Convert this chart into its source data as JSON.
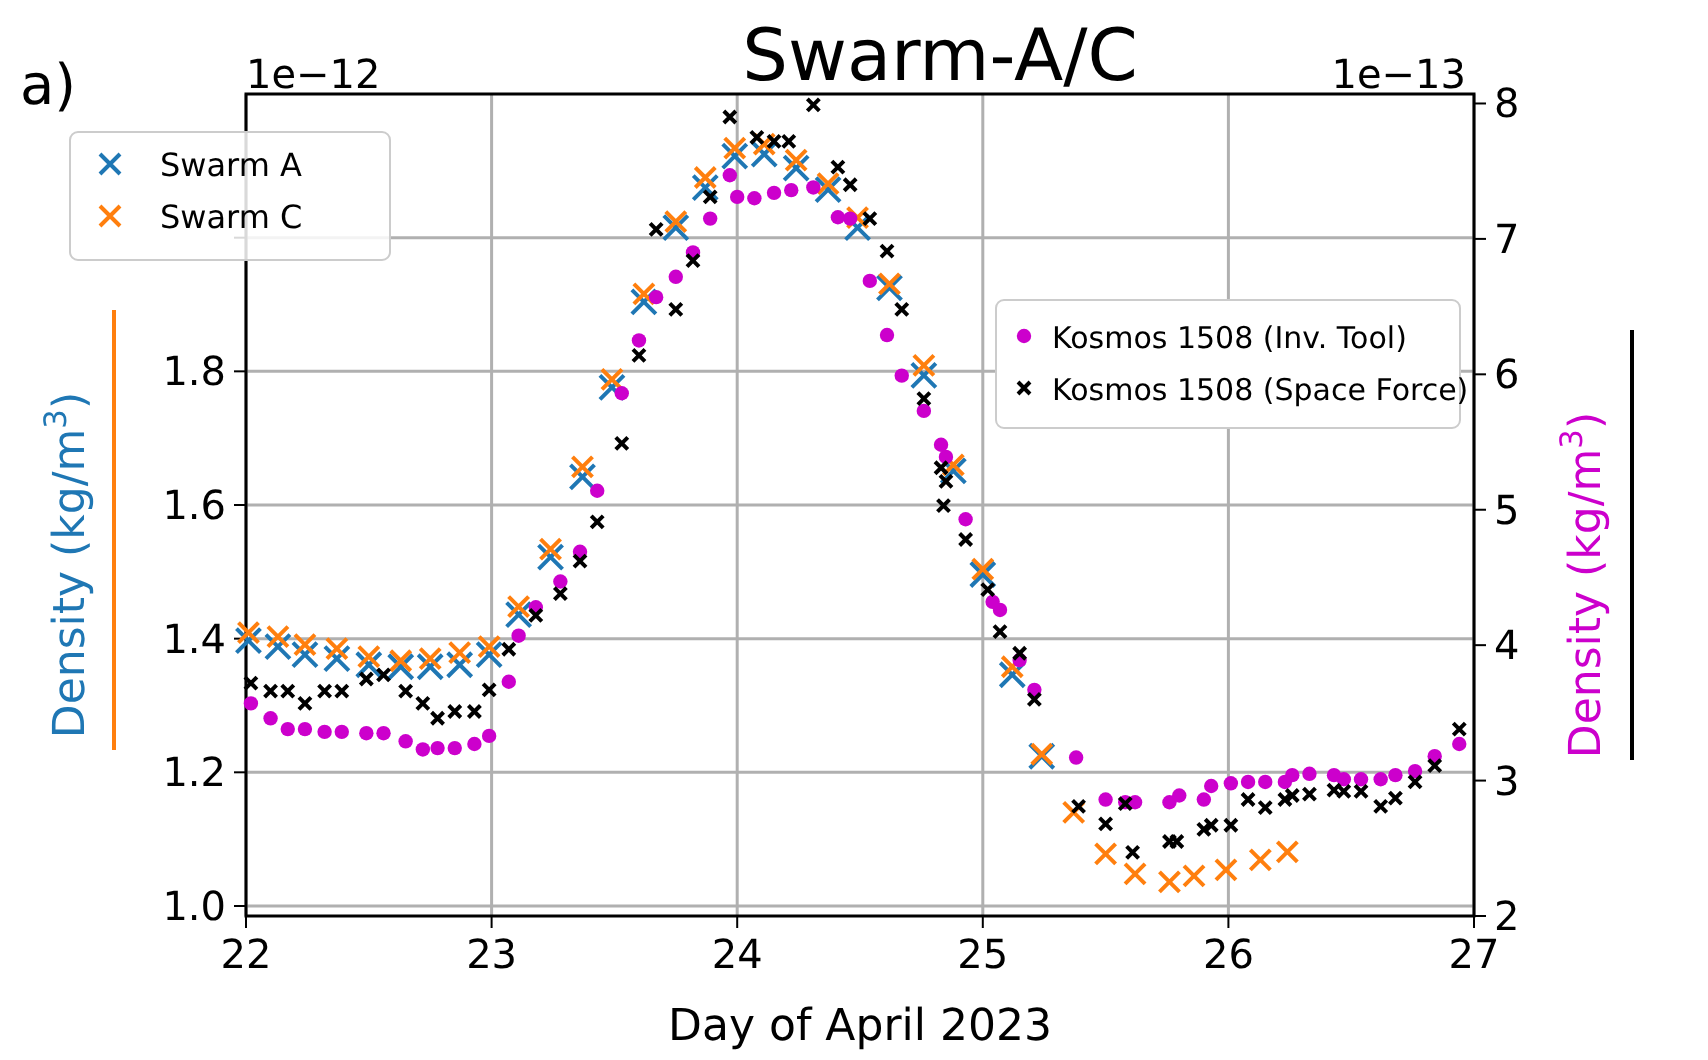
{
  "chart_data": {
    "type": "scatter",
    "title": "Swarm-A/C",
    "xlabel": "Day of April 2023",
    "ylabel": "Density (kg/m$^{3}$)",
    "y2label": "Density (kg/m$^{3}$)",
    "annotations": [
      "a)",
      "1e−12",
      "1e−13"
    ],
    "xlim": [
      22,
      27
    ],
    "xticks": [
      22,
      23,
      24,
      25,
      26,
      27
    ],
    "ylim": [
      0.985,
      2.215
    ],
    "yticks": [
      {
        "value": 1.0,
        "label": "1.0"
      },
      1.2,
      1.4,
      1.6,
      1.8,
      {
        "value": 2.0,
        "label": null
      }
    ],
    "y2lim": [
      2.0,
      8.07
    ],
    "y2ticks": [
      2,
      3,
      4,
      5,
      6,
      7,
      8
    ],
    "grid": true,
    "legend": "top",
    "series": [
      {
        "name": "Swarm A",
        "color": "#1f77b4",
        "marker": "cross",
        "axis": "y",
        "x": [
          22.01,
          22.13,
          22.24,
          22.37,
          22.5,
          22.63,
          22.75,
          22.87,
          22.99,
          23.11,
          23.24,
          23.37,
          23.49,
          23.62,
          23.75,
          23.87,
          23.99,
          24.11,
          24.24,
          24.37,
          24.49,
          24.62,
          24.76,
          24.88,
          25.0,
          25.12,
          25.24
        ],
        "values": [
          1.397,
          1.388,
          1.376,
          1.37,
          1.361,
          1.358,
          1.358,
          1.361,
          1.376,
          1.436,
          1.522,
          1.642,
          1.776,
          1.904,
          2.015,
          2.075,
          2.122,
          2.125,
          2.104,
          2.072,
          2.015,
          1.925,
          1.794,
          1.651,
          1.496,
          1.346,
          1.224
        ]
      },
      {
        "name": "Swarm C",
        "color": "#ff7f0e",
        "marker": "cross",
        "axis": "y",
        "x": [
          22.01,
          22.13,
          22.24,
          22.37,
          22.5,
          22.63,
          22.75,
          22.87,
          22.99,
          23.11,
          23.24,
          23.37,
          23.49,
          23.62,
          23.75,
          23.87,
          23.99,
          24.11,
          24.24,
          24.37,
          24.49,
          24.62,
          24.76,
          24.88,
          25.0,
          25.12,
          25.24,
          25.37,
          25.5,
          25.62,
          25.76,
          25.86,
          25.99,
          26.13,
          26.24
        ],
        "values": [
          1.409,
          1.403,
          1.391,
          1.385,
          1.373,
          1.367,
          1.37,
          1.379,
          1.388,
          1.448,
          1.534,
          1.657,
          1.788,
          1.916,
          2.024,
          2.09,
          2.134,
          2.14,
          2.116,
          2.081,
          2.03,
          1.931,
          1.809,
          1.66,
          1.504,
          1.358,
          1.227,
          1.14,
          1.078,
          1.048,
          1.036,
          1.045,
          1.054,
          1.069,
          1.081
        ]
      },
      {
        "name": "Kosmos 1508 (Inv. Tool)",
        "color": "#cc00cc",
        "marker": "circle",
        "axis": "y2",
        "x": [
          22.02,
          22.1,
          22.17,
          22.24,
          22.32,
          22.39,
          22.49,
          22.56,
          22.65,
          22.72,
          22.78,
          22.85,
          22.93,
          22.99,
          23.07,
          23.11,
          23.18,
          23.28,
          23.36,
          23.43,
          23.53,
          23.6,
          23.67,
          23.75,
          23.82,
          23.89,
          23.97,
          24.0,
          24.07,
          24.15,
          24.22,
          24.31,
          24.41,
          24.46,
          24.54,
          24.61,
          24.67,
          24.76,
          24.83,
          24.85,
          24.93,
          25.04,
          25.07,
          25.15,
          25.21,
          25.38,
          25.5,
          25.58,
          25.62,
          25.76,
          25.8,
          25.9,
          25.93,
          26.01,
          26.08,
          26.15,
          26.23,
          26.26,
          26.33,
          26.43,
          26.47,
          26.54,
          26.62,
          26.68,
          26.76,
          26.84,
          26.94
        ],
        "values": [
          3.57,
          3.46,
          3.38,
          3.38,
          3.36,
          3.36,
          3.35,
          3.35,
          3.29,
          3.23,
          3.24,
          3.24,
          3.27,
          3.33,
          3.73,
          4.07,
          4.28,
          4.47,
          4.69,
          5.14,
          5.86,
          6.25,
          6.57,
          6.72,
          6.9,
          7.15,
          7.47,
          7.31,
          7.3,
          7.34,
          7.36,
          7.38,
          7.16,
          7.15,
          6.69,
          6.29,
          5.99,
          5.73,
          5.48,
          5.39,
          4.93,
          4.32,
          4.26,
          3.89,
          3.67,
          3.17,
          2.86,
          2.84,
          2.84,
          2.84,
          2.89,
          2.86,
          2.96,
          2.98,
          2.99,
          2.99,
          2.99,
          3.04,
          3.05,
          3.04,
          3.01,
          3.01,
          3.01,
          3.04,
          3.07,
          3.18,
          3.27
        ]
      },
      {
        "name": "Kosmos 1508 (Space Force)",
        "color": "#000000",
        "marker": "cross",
        "axis": "y2",
        "x": [
          22.02,
          22.1,
          22.17,
          22.24,
          22.32,
          22.39,
          22.49,
          22.56,
          22.65,
          22.72,
          22.78,
          22.85,
          22.93,
          22.99,
          23.07,
          23.18,
          23.28,
          23.36,
          23.43,
          23.53,
          23.6,
          23.67,
          23.75,
          23.82,
          23.89,
          23.97,
          24.08,
          24.15,
          24.21,
          24.31,
          24.41,
          24.46,
          24.54,
          24.61,
          24.67,
          24.76,
          24.83,
          24.85,
          24.84,
          24.93,
          25.02,
          25.07,
          25.15,
          25.21,
          25.39,
          25.5,
          25.58,
          25.61,
          25.76,
          25.79,
          25.9,
          25.93,
          26.01,
          26.08,
          26.15,
          26.23,
          26.26,
          26.33,
          26.43,
          26.47,
          26.54,
          26.62,
          26.68,
          26.76,
          26.84,
          26.94
        ],
        "values": [
          3.72,
          3.66,
          3.66,
          3.57,
          3.66,
          3.66,
          3.75,
          3.78,
          3.66,
          3.57,
          3.46,
          3.51,
          3.51,
          3.67,
          3.97,
          4.22,
          4.38,
          4.62,
          4.91,
          5.49,
          6.14,
          7.07,
          6.48,
          6.84,
          7.31,
          7.9,
          7.75,
          7.72,
          7.72,
          7.99,
          7.53,
          7.4,
          7.15,
          6.91,
          6.48,
          5.82,
          5.31,
          5.21,
          5.03,
          4.78,
          4.41,
          4.1,
          3.94,
          3.6,
          2.81,
          2.68,
          2.83,
          2.47,
          2.55,
          2.55,
          2.64,
          2.67,
          2.67,
          2.86,
          2.8,
          2.86,
          2.89,
          2.9,
          2.93,
          2.92,
          2.92,
          2.81,
          2.87,
          2.99,
          3.11,
          3.38
        ]
      }
    ]
  }
}
